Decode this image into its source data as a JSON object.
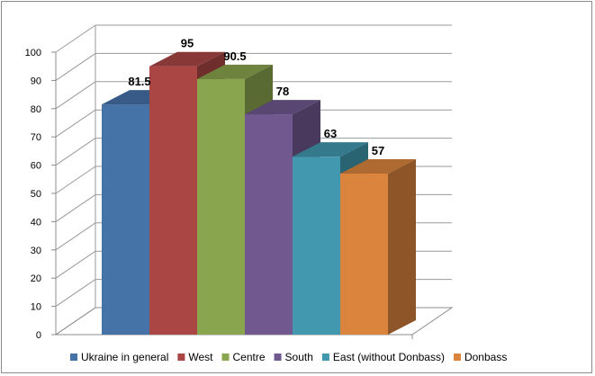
{
  "chart_data": {
    "type": "bar",
    "title": "",
    "xlabel": "",
    "ylabel": "",
    "ylim": [
      0,
      100
    ],
    "yticks": [
      0,
      10,
      20,
      30,
      40,
      50,
      60,
      70,
      80,
      90,
      100
    ],
    "grid": true,
    "style": "3d-clustered-column",
    "legend_position": "bottom",
    "series": [
      {
        "name": "Ukraine in general",
        "value": 81.5,
        "label": "81.5",
        "color": "#4572a7"
      },
      {
        "name": "West",
        "value": 95,
        "label": "95",
        "color": "#aa4643"
      },
      {
        "name": "Centre",
        "value": 90.5,
        "label": "90.5",
        "color": "#89a54e"
      },
      {
        "name": "South",
        "value": 78,
        "label": "78",
        "color": "#71588f"
      },
      {
        "name": "East (without Donbass)",
        "value": 63,
        "label": "63",
        "color": "#4198af"
      },
      {
        "name": "Donbass",
        "value": 57,
        "label": "57",
        "color": "#db843d"
      }
    ]
  }
}
